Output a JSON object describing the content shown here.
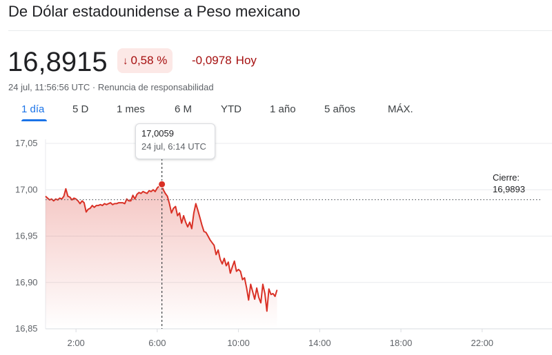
{
  "header": {
    "title": "De Dólar estadounidense a Peso mexicano"
  },
  "quote": {
    "price": "16,8915",
    "change_percent": "0,58 %",
    "change_absolute": "-0,0978",
    "change_period": "Hoy",
    "direction_icon": "arrow-down-icon",
    "timestamp": "24 jul, 11:56:56 UTC",
    "separator": "·",
    "disclaimer_link": "Renuncia de responsabilidad"
  },
  "ranges": {
    "selected": "1 día",
    "tabs": [
      "1 día",
      "5 D",
      "1 mes",
      "6 M",
      "YTD",
      "1 año",
      "5 años",
      "MÁX."
    ]
  },
  "tooltip": {
    "value": "17,0059",
    "time": "24 jul, 6:14 UTC"
  },
  "previous_close": {
    "label": "Cierre:",
    "value": "16,9893"
  },
  "colors": {
    "negative": "#d93025",
    "negative_dark": "#a50e0e",
    "badge_bg": "#fce8e6",
    "accent": "#1a73e8",
    "grid": "#e8eaed"
  },
  "chart_data": {
    "type": "area",
    "title": "",
    "xlabel": "",
    "ylabel": "",
    "ylim": [
      16.85,
      17.05
    ],
    "xlim": [
      0.5,
      24.25
    ],
    "y_ticks": [
      17.05,
      17.0,
      16.95,
      16.9,
      16.85
    ],
    "y_tick_labels": [
      "17,05",
      "17,00",
      "16,95",
      "16,90",
      "16,85"
    ],
    "x_ticks": [
      2,
      6,
      10,
      14,
      18,
      22
    ],
    "x_tick_labels": [
      "2:00",
      "6:00",
      "10:00",
      "14:00",
      "18:00",
      "22:00"
    ],
    "grid": true,
    "previous_close": 16.9893,
    "highlight": {
      "x": 6.23,
      "y": 17.0059
    },
    "series": [
      {
        "x": [
          0.5,
          0.6,
          0.7,
          0.8,
          0.9,
          1.0,
          1.1,
          1.2,
          1.3,
          1.4,
          1.5,
          1.6,
          1.7,
          1.8,
          1.9,
          2.0,
          2.1,
          2.2,
          2.3,
          2.4,
          2.5,
          2.6,
          2.7,
          2.8,
          2.9,
          3.0,
          3.1,
          3.2,
          3.3,
          3.4,
          3.5,
          3.6,
          3.7,
          3.8,
          3.9,
          4.0,
          4.1,
          4.2,
          4.3,
          4.4,
          4.5,
          4.6,
          4.7,
          4.8,
          4.9,
          5.0,
          5.1,
          5.2,
          5.3,
          5.4,
          5.5,
          5.6,
          5.7,
          5.8,
          5.9,
          6.0,
          6.1,
          6.23,
          6.3,
          6.4,
          6.5,
          6.6,
          6.7,
          6.8,
          6.9,
          7.0,
          7.1,
          7.2,
          7.3,
          7.4,
          7.5,
          7.6,
          7.7,
          7.8,
          7.9,
          8.0,
          8.1,
          8.2,
          8.3,
          8.4,
          8.5,
          8.6,
          8.7,
          8.8,
          8.9,
          9.0,
          9.1,
          9.2,
          9.3,
          9.4,
          9.5,
          9.6,
          9.7,
          9.8,
          9.9,
          10.0,
          10.1,
          10.2,
          10.3,
          10.4,
          10.5,
          10.6,
          10.7,
          10.8,
          10.9,
          11.0,
          11.1,
          11.2,
          11.3,
          11.4,
          11.5,
          11.6,
          11.7,
          11.8,
          11.9
        ],
        "y": [
          16.993,
          16.991,
          16.989,
          16.99,
          16.988,
          16.99,
          16.989,
          16.991,
          16.99,
          16.993,
          17.001,
          16.993,
          16.992,
          16.989,
          16.991,
          16.99,
          16.988,
          16.985,
          16.988,
          16.986,
          16.976,
          16.979,
          16.98,
          16.983,
          16.981,
          16.983,
          16.983,
          16.984,
          16.983,
          16.985,
          16.984,
          16.985,
          16.986,
          16.984,
          16.985,
          16.985,
          16.986,
          16.986,
          16.986,
          16.985,
          16.99,
          16.988,
          16.988,
          16.994,
          16.99,
          16.995,
          16.997,
          16.996,
          16.998,
          16.997,
          16.996,
          16.999,
          16.998,
          17.0,
          16.998,
          17.002,
          17.004,
          17.006,
          17.0,
          16.996,
          16.993,
          16.985,
          16.975,
          16.98,
          16.982,
          16.972,
          16.975,
          16.964,
          16.972,
          16.965,
          16.96,
          16.965,
          16.958,
          16.975,
          16.985,
          16.978,
          16.97,
          16.962,
          16.955,
          16.954,
          16.95,
          16.946,
          16.943,
          16.94,
          16.93,
          16.935,
          16.925,
          16.92,
          16.926,
          16.918,
          16.922,
          16.91,
          16.917,
          16.923,
          16.912,
          16.914,
          16.912,
          16.903,
          16.905,
          16.894,
          16.881,
          16.898,
          16.89,
          16.882,
          16.894,
          16.884,
          16.878,
          16.898,
          16.888,
          16.869,
          16.893,
          16.887,
          16.888,
          16.885,
          16.892
        ]
      }
    ]
  }
}
